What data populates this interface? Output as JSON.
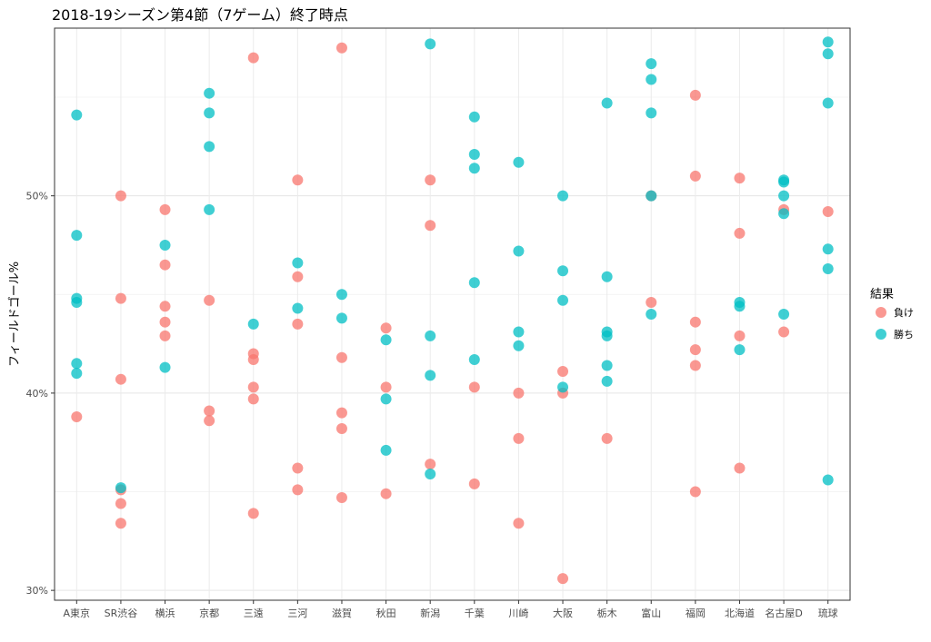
{
  "chart_data": {
    "type": "scatter",
    "title": "2018-19シーズン第4節（7ゲーム）終了時点",
    "xlabel": "",
    "ylabel": "フィールドゴール%",
    "ylim": [
      29.5,
      58.5
    ],
    "y_ticks": [
      30,
      40,
      50
    ],
    "y_tick_labels": [
      "30%",
      "40%",
      "50%"
    ],
    "categories": [
      "A東京",
      "SR渋谷",
      "横浜",
      "京都",
      "三遠",
      "三河",
      "滋賀",
      "秋田",
      "新潟",
      "千葉",
      "川崎",
      "大阪",
      "栃木",
      "富山",
      "福岡",
      "北海道",
      "名古屋D",
      "琉球"
    ],
    "grid": true,
    "legend": {
      "title": "結果",
      "position": "right"
    },
    "series": [
      {
        "name": "負け",
        "color": "#F8766D",
        "points": [
          [
            "A東京",
            38.8
          ],
          [
            "SR渋谷",
            50.0
          ],
          [
            "SR渋谷",
            44.8
          ],
          [
            "SR渋谷",
            40.7
          ],
          [
            "SR渋谷",
            35.1
          ],
          [
            "SR渋谷",
            34.4
          ],
          [
            "SR渋谷",
            33.4
          ],
          [
            "横浜",
            49.3
          ],
          [
            "横浜",
            46.5
          ],
          [
            "横浜",
            44.4
          ],
          [
            "横浜",
            43.6
          ],
          [
            "横浜",
            42.9
          ],
          [
            "京都",
            44.7
          ],
          [
            "京都",
            39.1
          ],
          [
            "京都",
            38.6
          ],
          [
            "三遠",
            57.0
          ],
          [
            "三遠",
            42.0
          ],
          [
            "三遠",
            41.7
          ],
          [
            "三遠",
            40.3
          ],
          [
            "三遠",
            39.7
          ],
          [
            "三遠",
            33.9
          ],
          [
            "三河",
            50.8
          ],
          [
            "三河",
            45.9
          ],
          [
            "三河",
            43.5
          ],
          [
            "三河",
            36.2
          ],
          [
            "三河",
            35.1
          ],
          [
            "滋賀",
            57.5
          ],
          [
            "滋賀",
            41.8
          ],
          [
            "滋賀",
            39.0
          ],
          [
            "滋賀",
            38.2
          ],
          [
            "滋賀",
            34.7
          ],
          [
            "秋田",
            43.3
          ],
          [
            "秋田",
            40.3
          ],
          [
            "秋田",
            34.9
          ],
          [
            "新潟",
            50.8
          ],
          [
            "新潟",
            48.5
          ],
          [
            "新潟",
            36.4
          ],
          [
            "千葉",
            40.3
          ],
          [
            "千葉",
            35.4
          ],
          [
            "川崎",
            40.0
          ],
          [
            "川崎",
            37.7
          ],
          [
            "川崎",
            33.4
          ],
          [
            "大阪",
            41.1
          ],
          [
            "大阪",
            40.0
          ],
          [
            "大阪",
            30.6
          ],
          [
            "栃木",
            37.7
          ],
          [
            "富山",
            50.0
          ],
          [
            "富山",
            44.6
          ],
          [
            "福岡",
            55.1
          ],
          [
            "福岡",
            51.0
          ],
          [
            "福岡",
            43.6
          ],
          [
            "福岡",
            42.2
          ],
          [
            "福岡",
            41.4
          ],
          [
            "福岡",
            35.0
          ],
          [
            "北海道",
            50.9
          ],
          [
            "北海道",
            48.1
          ],
          [
            "北海道",
            42.9
          ],
          [
            "北海道",
            36.2
          ],
          [
            "名古屋D",
            49.3
          ],
          [
            "名古屋D",
            43.1
          ],
          [
            "琉球",
            49.2
          ]
        ]
      },
      {
        "name": "勝ち",
        "color": "#00BFC4",
        "points": [
          [
            "A東京",
            54.1
          ],
          [
            "A東京",
            48.0
          ],
          [
            "A東京",
            44.8
          ],
          [
            "A東京",
            44.6
          ],
          [
            "A東京",
            41.5
          ],
          [
            "A東京",
            41.0
          ],
          [
            "SR渋谷",
            35.2
          ],
          [
            "横浜",
            47.5
          ],
          [
            "横浜",
            41.3
          ],
          [
            "京都",
            55.2
          ],
          [
            "京都",
            54.2
          ],
          [
            "京都",
            52.5
          ],
          [
            "京都",
            49.3
          ],
          [
            "三遠",
            43.5
          ],
          [
            "三河",
            46.6
          ],
          [
            "三河",
            44.3
          ],
          [
            "滋賀",
            45.0
          ],
          [
            "滋賀",
            43.8
          ],
          [
            "秋田",
            42.7
          ],
          [
            "秋田",
            39.7
          ],
          [
            "秋田",
            37.1
          ],
          [
            "新潟",
            57.7
          ],
          [
            "新潟",
            42.9
          ],
          [
            "新潟",
            40.9
          ],
          [
            "新潟",
            35.9
          ],
          [
            "千葉",
            54.0
          ],
          [
            "千葉",
            52.1
          ],
          [
            "千葉",
            51.4
          ],
          [
            "千葉",
            45.6
          ],
          [
            "千葉",
            41.7
          ],
          [
            "川崎",
            51.7
          ],
          [
            "川崎",
            47.2
          ],
          [
            "川崎",
            43.1
          ],
          [
            "川崎",
            42.4
          ],
          [
            "大阪",
            50.0
          ],
          [
            "大阪",
            46.2
          ],
          [
            "大阪",
            44.7
          ],
          [
            "大阪",
            40.3
          ],
          [
            "栃木",
            54.7
          ],
          [
            "栃木",
            45.9
          ],
          [
            "栃木",
            43.1
          ],
          [
            "栃木",
            42.9
          ],
          [
            "栃木",
            41.4
          ],
          [
            "栃木",
            40.6
          ],
          [
            "富山",
            56.7
          ],
          [
            "富山",
            55.9
          ],
          [
            "富山",
            54.2
          ],
          [
            "富山",
            50.0
          ],
          [
            "富山",
            44.0
          ],
          [
            "北海道",
            44.6
          ],
          [
            "北海道",
            44.4
          ],
          [
            "北海道",
            42.2
          ],
          [
            "名古屋D",
            50.8
          ],
          [
            "名古屋D",
            50.7
          ],
          [
            "名古屋D",
            50.0
          ],
          [
            "名古屋D",
            49.1
          ],
          [
            "名古屋D",
            44.0
          ],
          [
            "琉球",
            57.8
          ],
          [
            "琉球",
            57.2
          ],
          [
            "琉球",
            54.7
          ],
          [
            "琉球",
            47.3
          ],
          [
            "琉球",
            46.3
          ],
          [
            "琉球",
            35.6
          ]
        ]
      }
    ]
  }
}
